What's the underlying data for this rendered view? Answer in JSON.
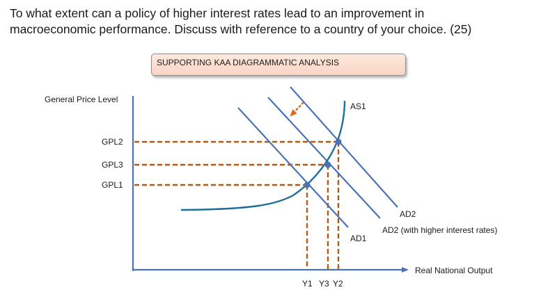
{
  "question": {
    "line1": "To what extent can a policy of higher interest rates lead to an improvement in",
    "line2": "macroeconomic performance. Discuss with reference to a country of your choice. (25)"
  },
  "analysis_box": {
    "label": "SUPPORTING KAA DIAGRAMMATIC ANALYSIS"
  },
  "diagram": {
    "y_axis_label": "General Price Level",
    "x_axis_label": "Real National Output",
    "price_levels": [
      "GPL2",
      "GPL3",
      "GPL1"
    ],
    "output_levels": [
      "Y1",
      "Y3",
      "Y2"
    ],
    "curves": {
      "as": "AS1",
      "ad_original": "AD2",
      "ad_higher_rates": "AD2 (with higher interest rates)",
      "ad_new": "AD1"
    },
    "colors": {
      "curve": "#4a72b8",
      "as_curve": "#1e6e99",
      "guide": "#b05a16",
      "axis": "#4a72b8",
      "shift_arrow": "#d9691f",
      "point": "#4a72b8"
    }
  }
}
